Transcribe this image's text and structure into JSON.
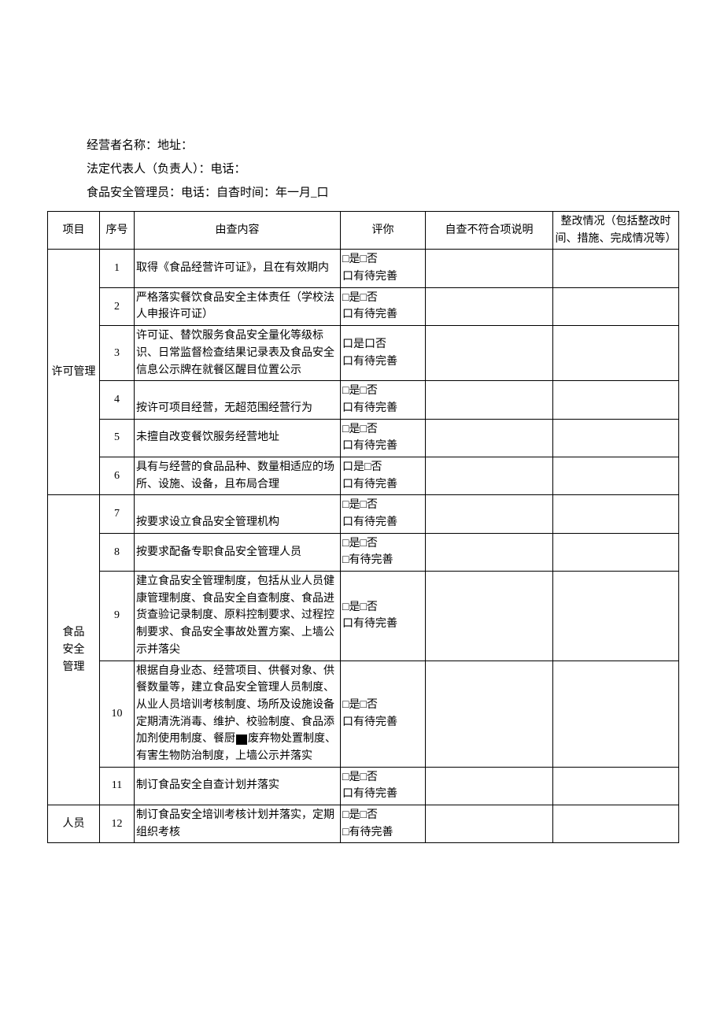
{
  "header": {
    "line1": "经营者名称：地址：",
    "line2": "法定代表人（负责人）：电话：",
    "line3": "食品安全管理员：电话：自杳时间：年一月_口"
  },
  "columns": {
    "project": "项目",
    "num": "序号",
    "content": "由查内容",
    "eval": "评你",
    "nonconf": "自查不符合项说明",
    "rect": "整改情况（包括整改时间、措施、完成情况等）"
  },
  "sections": [
    {
      "title": "许可管理",
      "rows": [
        {
          "n": "1",
          "content": "取得《食品经营许可证》，且在有效期内",
          "eval": "□是□否\n口有待完善",
          "cbalign": false
        },
        {
          "n": "2",
          "content": "严格落实餐饮食品安全主体责任（学校法人申报许可证）",
          "eval": "□是□否\n口有待完善",
          "cbalign": false
        },
        {
          "n": "3",
          "content": "许可证、替饮服务食品安全量化等级标识、日常监督检查结果记录表及食品安全信息公示牌在就餐区醒目位置公示",
          "eval": "口是口否\n口有待完善",
          "cbalign": true
        },
        {
          "n": "4",
          "content": "按许可项目经营，无超范围经营行为",
          "eval": "□是□否\n口有待完善",
          "cbalign": true
        },
        {
          "n": "5",
          "content": "未擅自改变餐饮服务经营地址",
          "eval": "□是□否\n口有待完善",
          "cbalign": false
        },
        {
          "n": "6",
          "content": "具有与经营的食品品种、数量相适应的场所、设施、设备，且布局合理",
          "eval": "口是□否\n口有待完善",
          "cbalign": true
        }
      ]
    },
    {
      "title": "食品\n安全\n管理",
      "rows": [
        {
          "n": "7",
          "content": "按要求设立食品安全管理机构",
          "eval": "□是□否\n口有待完善",
          "cbalign": true
        },
        {
          "n": "8",
          "content": "按要求配备专职食品安全管理人员",
          "eval": "□是□否\n□有待完善",
          "cbalign": false
        },
        {
          "n": "9",
          "content": "建立食品安全管理制度，包括从业人员健康管理制度、食品安全自查制度、食品进货查验记录制度、原料控制要求、过程控制要求、食品安全事故处置方案、上墙公示并落尖",
          "eval": "□是□否\n口有待完善",
          "cbalign": true
        },
        {
          "n": "10",
          "content": "根据自身业态、经营项目、供餐对象、供餐数量等，建立食品安全管理人员制度、从业人员培训考核制度、场所及设施设备定期清洗消毒、维护、校验制度、食品添加剂使用制度、餐厨[BLK]废弃物处置制度、有害生物防治制度，上墙公示并落实",
          "eval": "□是□否\n口有待完善",
          "cbalign": false
        },
        {
          "n": "11",
          "content": "制订食品安全自查计划并落实",
          "eval": "□是□否\n口有待完善",
          "cbalign": false
        }
      ]
    },
    {
      "title": "人员",
      "rows": [
        {
          "n": "12",
          "content": "制订食品安全培训考核计划并落实，定期组织考核",
          "eval": "□是□否\n□有待完善",
          "cbalign": false
        }
      ]
    }
  ]
}
